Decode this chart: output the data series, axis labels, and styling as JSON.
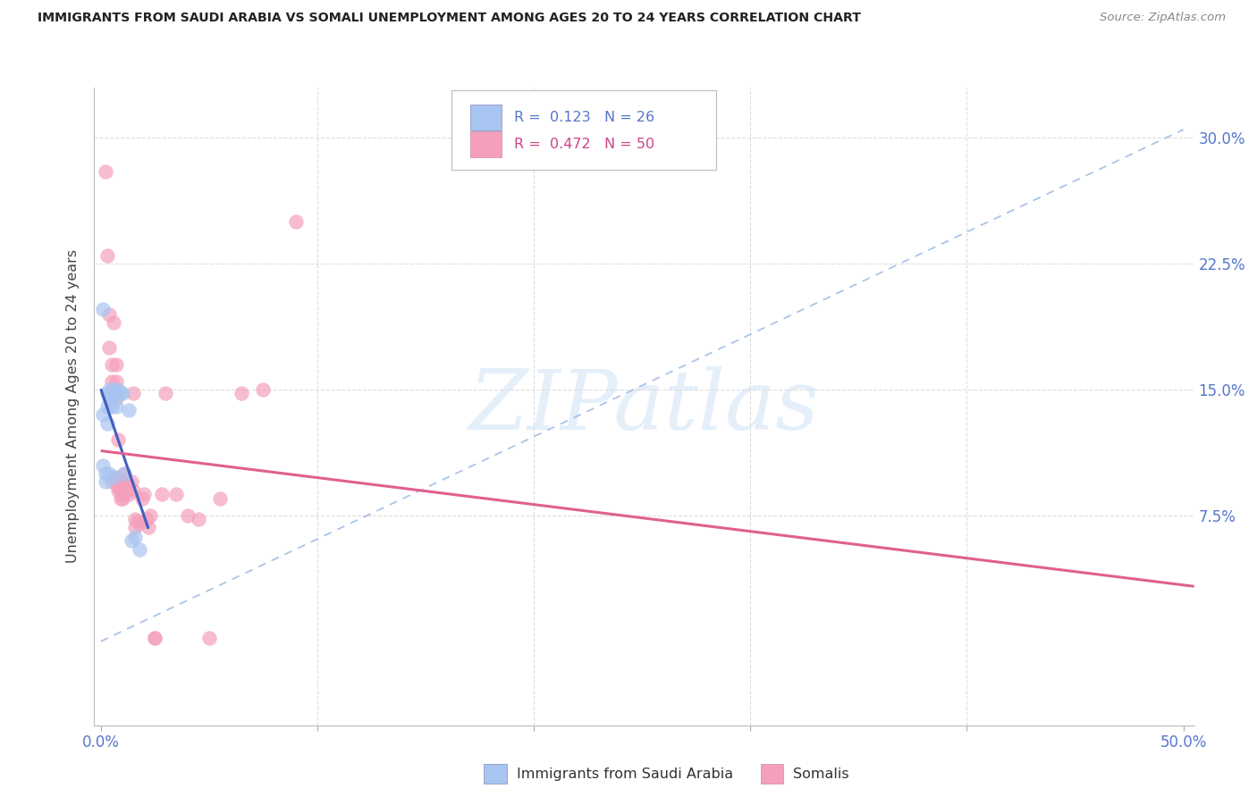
{
  "title": "IMMIGRANTS FROM SAUDI ARABIA VS SOMALI UNEMPLOYMENT AMONG AGES 20 TO 24 YEARS CORRELATION CHART",
  "source": "Source: ZipAtlas.com",
  "ylabel": "Unemployment Among Ages 20 to 24 years",
  "ytick_values": [
    0.0,
    0.075,
    0.15,
    0.225,
    0.3
  ],
  "ytick_labels": [
    "",
    "7.5%",
    "15.0%",
    "22.5%",
    "30.0%"
  ],
  "xtick_values": [
    0.0,
    0.1,
    0.2,
    0.3,
    0.4,
    0.5
  ],
  "xtick_labels": [
    "0.0%",
    "",
    "",
    "",
    "",
    "50.0%"
  ],
  "xlim": [
    -0.003,
    0.505
  ],
  "ylim": [
    -0.05,
    0.33
  ],
  "legend_r_blue": "R =  0.123   N = 26",
  "legend_r_pink": "R =  0.472   N = 50",
  "label_blue": "Immigrants from Saudi Arabia",
  "label_pink": "Somalis",
  "color_blue": "#A8C4F0",
  "color_pink": "#F4A0BC",
  "color_blue_line": "#4060C0",
  "color_pink_line": "#E06090",
  "color_dashed": "#90B0E0",
  "color_grid": "#DDDDDD",
  "color_axis_text": "#5577CC",
  "watermark_text": "ZIPatlas",
  "saudi_x": [
    0.001,
    0.001,
    0.001,
    0.002,
    0.002,
    0.003,
    0.003,
    0.003,
    0.004,
    0.004,
    0.004,
    0.005,
    0.005,
    0.005,
    0.006,
    0.006,
    0.007,
    0.007,
    0.008,
    0.009,
    0.01,
    0.011,
    0.013,
    0.014,
    0.016,
    0.018
  ],
  "saudi_y": [
    0.198,
    0.135,
    0.105,
    0.1,
    0.095,
    0.148,
    0.14,
    0.13,
    0.15,
    0.145,
    0.1,
    0.148,
    0.145,
    0.14,
    0.098,
    0.15,
    0.148,
    0.14,
    0.15,
    0.148,
    0.148,
    0.1,
    0.138,
    0.06,
    0.062,
    0.055
  ],
  "somali_x": [
    0.002,
    0.003,
    0.004,
    0.004,
    0.005,
    0.005,
    0.005,
    0.006,
    0.006,
    0.007,
    0.007,
    0.007,
    0.008,
    0.008,
    0.008,
    0.008,
    0.009,
    0.009,
    0.009,
    0.01,
    0.01,
    0.011,
    0.012,
    0.012,
    0.013,
    0.013,
    0.014,
    0.015,
    0.015,
    0.016,
    0.016,
    0.017,
    0.018,
    0.019,
    0.02,
    0.021,
    0.022,
    0.023,
    0.025,
    0.025,
    0.028,
    0.03,
    0.035,
    0.04,
    0.045,
    0.05,
    0.055,
    0.065,
    0.075,
    0.09
  ],
  "somali_y": [
    0.28,
    0.23,
    0.175,
    0.195,
    0.165,
    0.155,
    0.095,
    0.19,
    0.15,
    0.145,
    0.165,
    0.155,
    0.12,
    0.098,
    0.09,
    0.092,
    0.095,
    0.085,
    0.09,
    0.085,
    0.088,
    0.1,
    0.09,
    0.092,
    0.088,
    0.093,
    0.095,
    0.148,
    0.09,
    0.068,
    0.073,
    0.072,
    0.07,
    0.085,
    0.088,
    0.073,
    0.068,
    0.075,
    0.002,
    0.002,
    0.088,
    0.148,
    0.088,
    0.075,
    0.073,
    0.002,
    0.085,
    0.148,
    0.15,
    0.25
  ]
}
